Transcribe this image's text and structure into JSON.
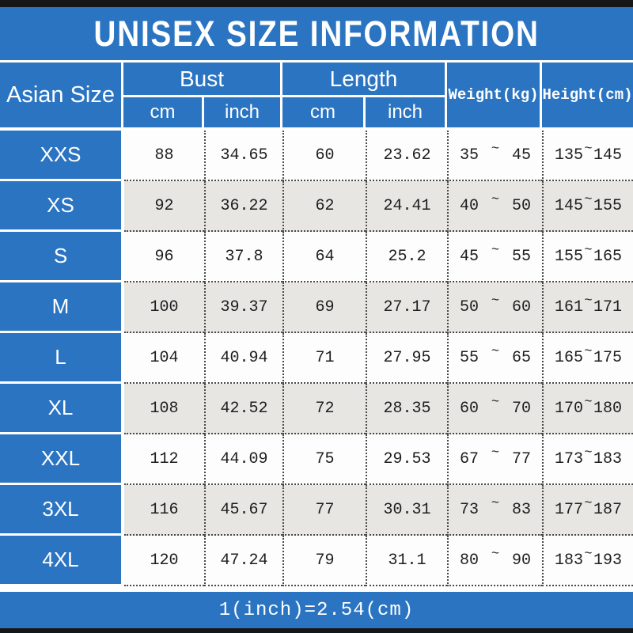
{
  "title": "UNISEX SIZE INFORMATION",
  "header": {
    "size_col": "Asian Size",
    "bust": {
      "label": "Bust",
      "sub_cm": "cm",
      "sub_inch": "inch"
    },
    "length": {
      "label": "Length",
      "sub_cm": "cm",
      "sub_inch": "inch"
    },
    "weight": "Weight(kg)",
    "height": "Height(cm)"
  },
  "range_separator": "~",
  "rows": [
    {
      "size": "XXS",
      "bust_cm": "88",
      "bust_inch": "34.65",
      "length_cm": "60",
      "length_inch": "23.62",
      "weight_min": "35",
      "weight_max": "45",
      "height_min": "135",
      "height_max": "145"
    },
    {
      "size": "XS",
      "bust_cm": "92",
      "bust_inch": "36.22",
      "length_cm": "62",
      "length_inch": "24.41",
      "weight_min": "40",
      "weight_max": "50",
      "height_min": "145",
      "height_max": "155"
    },
    {
      "size": "S",
      "bust_cm": "96",
      "bust_inch": "37.8",
      "length_cm": "64",
      "length_inch": "25.2",
      "weight_min": "45",
      "weight_max": "55",
      "height_min": "155",
      "height_max": "165"
    },
    {
      "size": "M",
      "bust_cm": "100",
      "bust_inch": "39.37",
      "length_cm": "69",
      "length_inch": "27.17",
      "weight_min": "50",
      "weight_max": "60",
      "height_min": "161",
      "height_max": "171"
    },
    {
      "size": "L",
      "bust_cm": "104",
      "bust_inch": "40.94",
      "length_cm": "71",
      "length_inch": "27.95",
      "weight_min": "55",
      "weight_max": "65",
      "height_min": "165",
      "height_max": "175"
    },
    {
      "size": "XL",
      "bust_cm": "108",
      "bust_inch": "42.52",
      "length_cm": "72",
      "length_inch": "28.35",
      "weight_min": "60",
      "weight_max": "70",
      "height_min": "170",
      "height_max": "180"
    },
    {
      "size": "XXL",
      "bust_cm": "112",
      "bust_inch": "44.09",
      "length_cm": "75",
      "length_inch": "29.53",
      "weight_min": "67",
      "weight_max": "77",
      "height_min": "173",
      "height_max": "183"
    },
    {
      "size": "3XL",
      "bust_cm": "116",
      "bust_inch": "45.67",
      "length_cm": "77",
      "length_inch": "30.31",
      "weight_min": "73",
      "weight_max": "83",
      "height_min": "177",
      "height_max": "187"
    },
    {
      "size": "4XL",
      "bust_cm": "120",
      "bust_inch": "47.24",
      "length_cm": "79",
      "length_inch": "31.1",
      "weight_min": "80",
      "weight_max": "90",
      "height_min": "183",
      "height_max": "193"
    }
  ],
  "footer_note": "1(inch)=2.54(cm)",
  "colors": {
    "accent_blue": "#2b74c2",
    "alt_row": "#e8e6e3",
    "bar_black": "#161616"
  }
}
